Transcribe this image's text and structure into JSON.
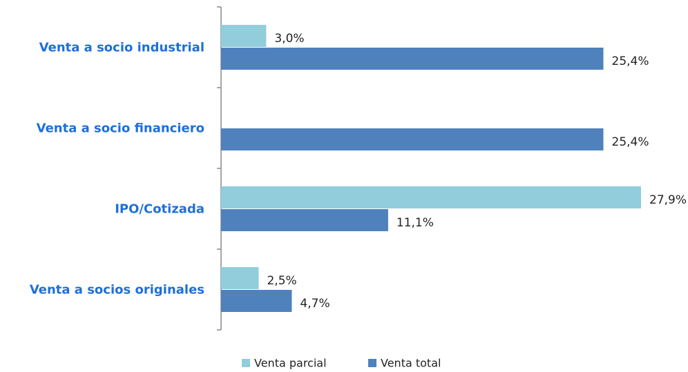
{
  "chart_data": {
    "type": "hbar",
    "categories": [
      "Venta a socio industrial",
      "Venta a socio financiero",
      "IPO/Cotizada",
      "Venta a socios originales"
    ],
    "series": [
      {
        "name": "Venta parcial",
        "color": "#92cddc",
        "values": [
          3.0,
          null,
          27.9,
          2.5
        ],
        "value_labels": [
          "3,0%",
          null,
          "27,9%",
          "2,5%"
        ]
      },
      {
        "name": "Venta total",
        "color": "#4f81bd",
        "values": [
          25.4,
          25.4,
          11.1,
          4.7
        ],
        "value_labels": [
          "25,4%",
          "25,4%",
          "11,1%",
          "4,7%"
        ]
      }
    ],
    "legend": "bottom"
  }
}
